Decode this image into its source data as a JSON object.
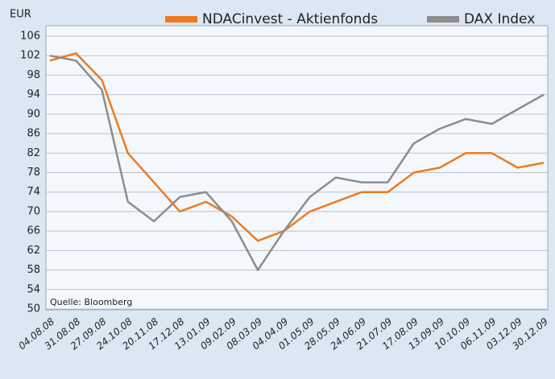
{
  "chart_data": {
    "type": "line",
    "y_label": "EUR",
    "annotation": "Quelle: Bloomberg",
    "categories": [
      "04.08.08",
      "31.08.08",
      "27.09.08",
      "24.10.08",
      "20.11.08",
      "17.12.08",
      "13.01.09",
      "09.02.09",
      "08.03.09",
      "04.04.09",
      "01.05.09",
      "28.05.09",
      "24.06.09",
      "21.07.09",
      "17.08.09",
      "13.09.09",
      "10.10.09",
      "06.11.09",
      "03.12.09",
      "30.12.09"
    ],
    "series": [
      {
        "name": "NDACinvest - Aktienfonds",
        "color": "#f07a1e",
        "values": [
          101,
          102.5,
          97,
          82,
          76,
          70,
          72,
          69,
          64,
          66,
          70,
          72,
          74,
          74,
          78,
          79,
          82,
          82,
          79,
          80
        ]
      },
      {
        "name": "DAX Index",
        "color": "#8c8c8c",
        "values": [
          102,
          101,
          95,
          72,
          68,
          73,
          74,
          68,
          58,
          66,
          73,
          77,
          76,
          76,
          84,
          87,
          89,
          88,
          91,
          94
        ]
      }
    ],
    "ylim": [
      50,
      106
    ],
    "yticks": [
      50,
      54,
      58,
      62,
      66,
      70,
      74,
      78,
      82,
      86,
      90,
      94,
      98,
      102,
      106
    ],
    "grid": true
  }
}
